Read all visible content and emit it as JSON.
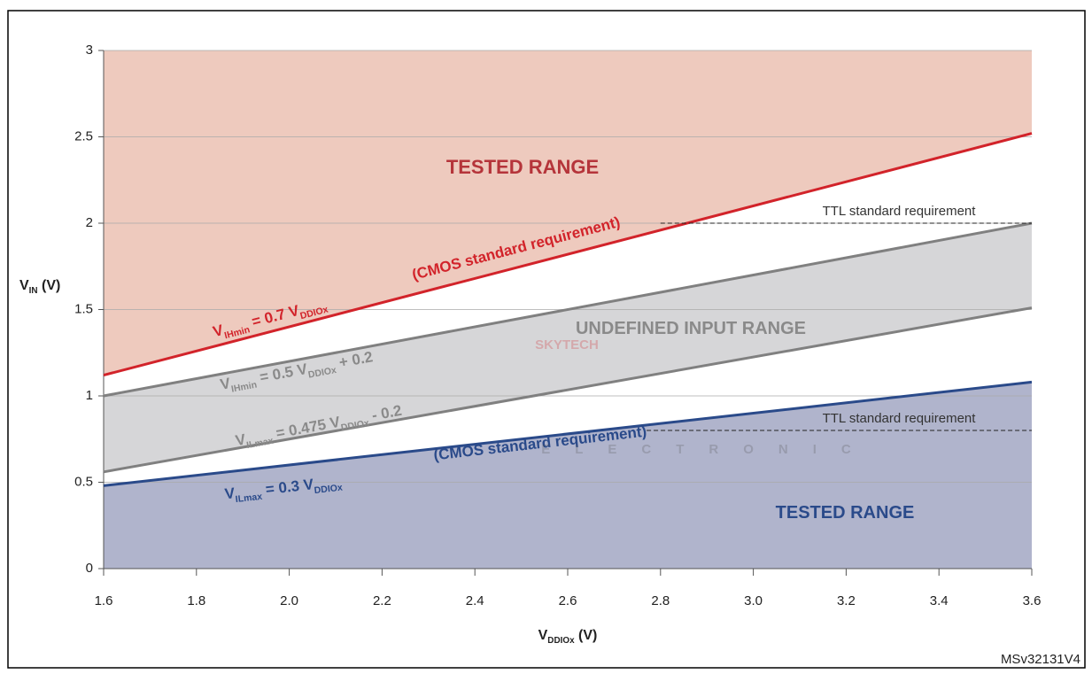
{
  "chart_data": {
    "type": "line",
    "xlabel": [
      "V",
      "DDIOx",
      " (V)"
    ],
    "ylabel": [
      "V",
      "IN",
      " (V)"
    ],
    "x": [
      1.6,
      3.6
    ],
    "xlim": [
      1.6,
      3.6
    ],
    "ylim": [
      0,
      3
    ],
    "xticks": [
      1.6,
      1.8,
      {
        "value": 2,
        "label": "2.0"
      },
      2.2,
      2.4,
      2.6,
      2.8,
      {
        "value": 3,
        "label": "3.0"
      },
      3.2,
      3.4,
      3.6
    ],
    "yticks": [
      0,
      0.5,
      1,
      1.5,
      2,
      2.5,
      3
    ],
    "grid": true,
    "series": [
      {
        "name": "VIHmin CMOS",
        "color": "#d2232a",
        "values": [
          1.12,
          2.52
        ]
      },
      {
        "name": "VIHmin",
        "color": "#808080",
        "values": [
          1.0,
          2.0
        ]
      },
      {
        "name": "VILmax",
        "color": "#808080",
        "values": [
          0.56,
          1.51
        ]
      },
      {
        "name": "VILmax CMOS",
        "color": "#2a4a8a",
        "values": [
          0.48,
          1.08
        ]
      }
    ],
    "ttl": [
      {
        "text": "TTL standard requirement",
        "x": [
          2.8,
          3.6
        ],
        "values": [
          2,
          2
        ]
      },
      {
        "text": "TTL standard requirement",
        "x": [
          2.77,
          3.6
        ],
        "values": [
          0.8,
          0.8
        ]
      }
    ],
    "annotations": [
      {
        "text": [
          "TESTED RANGE"
        ],
        "color": "#b5343a"
      },
      {
        "text": [
          "UNDEFINED INPUT RANGE"
        ],
        "color": "#8a8a8a"
      },
      {
        "text": [
          "TESTED RANGE"
        ],
        "color": "#2a4a8a"
      },
      {
        "text": [
          "(CMOS standard requirement)"
        ],
        "color": "#d2232a"
      },
      {
        "text": [
          "V",
          "IHmin",
          " = 0.7 V",
          "DDIOx"
        ],
        "color": "#d2232a"
      },
      {
        "text": [
          "V",
          "IHmin",
          " = 0.5 V",
          "DDIOx",
          " + 0.2"
        ],
        "color": "#8a8a8a"
      },
      {
        "text": [
          "V",
          "ILmax",
          " = 0.475 V",
          "DDIOx",
          " - 0.2"
        ],
        "color": "#8a8a8a"
      },
      {
        "text": [
          "(CMOS standard requirement)"
        ],
        "color": "#2a4a8a"
      },
      {
        "text": [
          "V",
          "ILmax",
          " = 0.3 V",
          "DDIOx"
        ],
        "color": "#2a4a8a"
      }
    ],
    "watermark": [
      "SKYTECH",
      "ELECTRONIC"
    ],
    "footnote": "MSv32131V4"
  }
}
